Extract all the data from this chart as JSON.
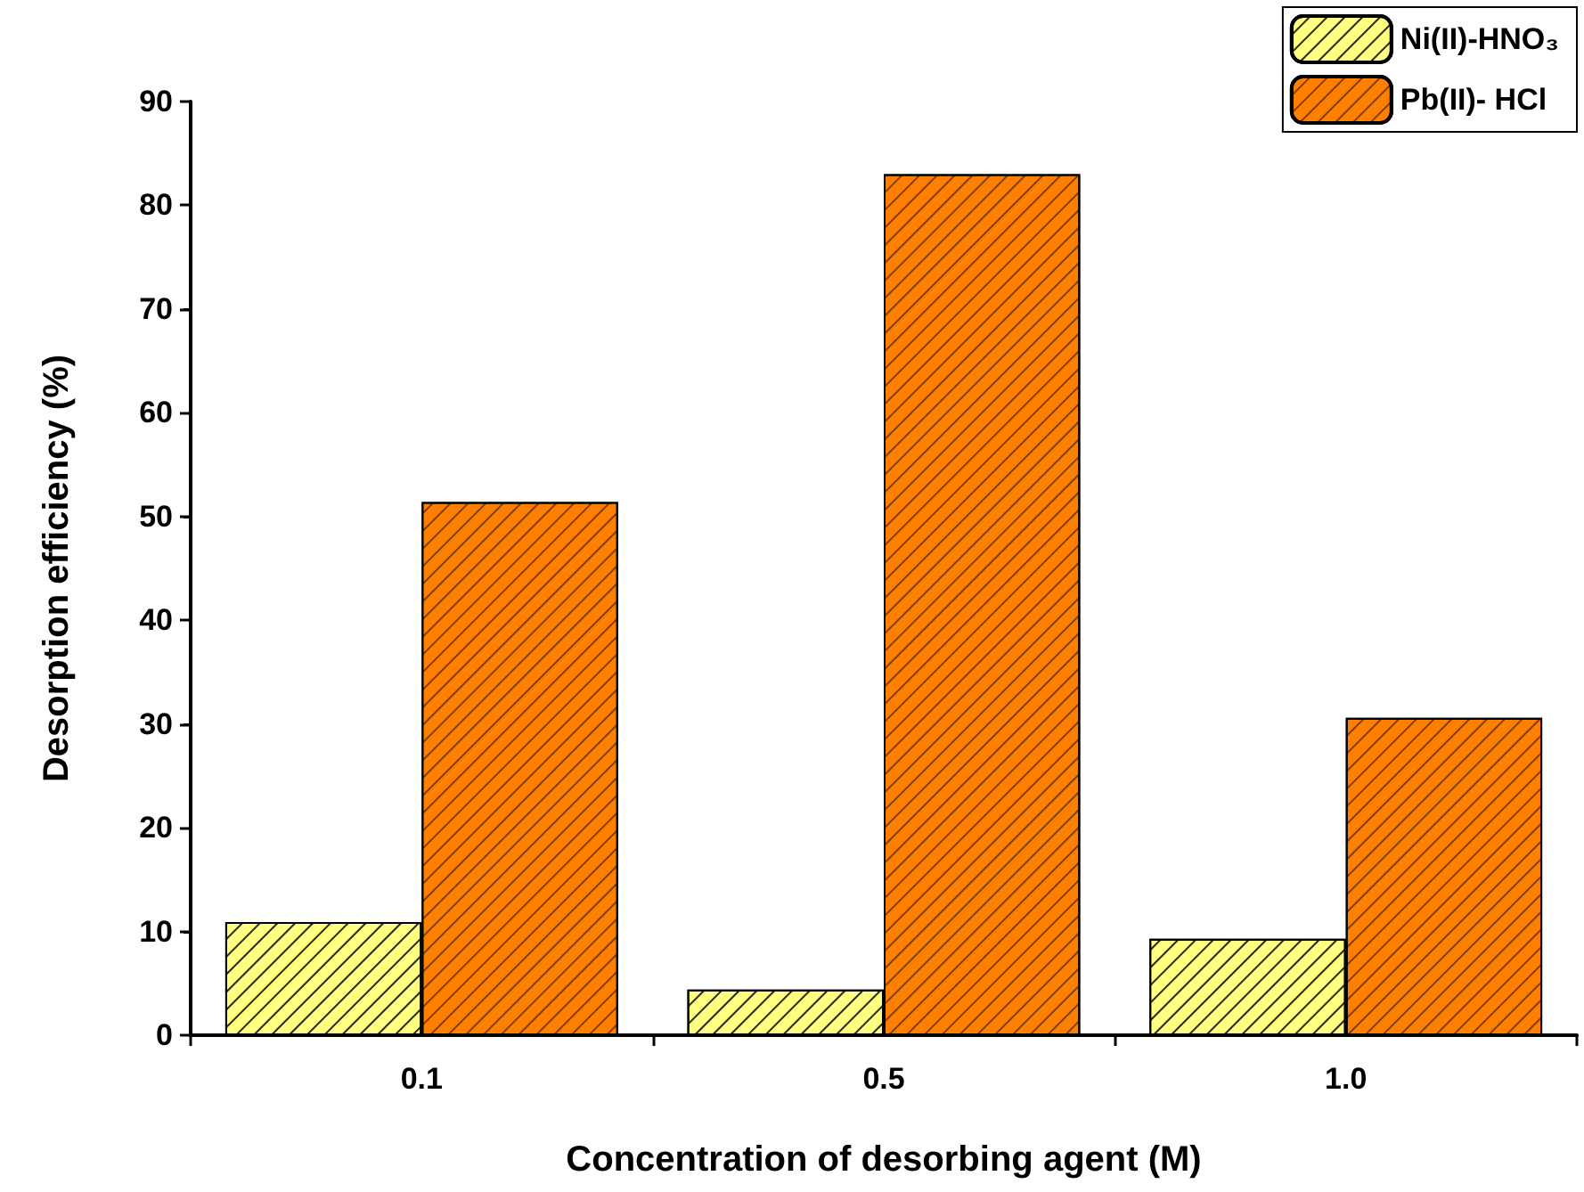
{
  "chart_data": {
    "type": "bar",
    "xlabel": "Concentration of desorbing agent (M)",
    "ylabel": "Desorption efficiency (%)",
    "categories": [
      "0.1",
      "0.5",
      "1.0"
    ],
    "series": [
      {
        "name": "Ni(II)-HNO₃",
        "color": "#ffff80",
        "values": [
          10.9,
          4.4,
          9.3
        ]
      },
      {
        "name": "Pb(II)- HCl",
        "color": "#ff8000",
        "values": [
          51.4,
          83.0,
          30.6
        ]
      }
    ],
    "ylim": [
      0,
      90
    ],
    "yticks": [
      0,
      10,
      20,
      30,
      40,
      50,
      60,
      70,
      80,
      90
    ],
    "grid": false,
    "legend": "top right"
  }
}
